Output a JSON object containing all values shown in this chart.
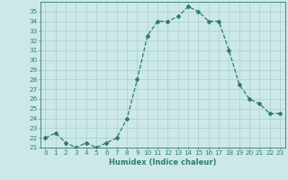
{
  "title": "",
  "xlabel": "Humidex (Indice chaleur)",
  "ylabel": "",
  "x": [
    0,
    1,
    2,
    3,
    4,
    5,
    6,
    7,
    8,
    9,
    10,
    11,
    12,
    13,
    14,
    15,
    16,
    17,
    18,
    19,
    20,
    21,
    22,
    23
  ],
  "y": [
    22.0,
    22.5,
    21.5,
    21.0,
    21.5,
    21.0,
    21.5,
    22.0,
    24.0,
    28.0,
    32.5,
    34.0,
    34.0,
    34.5,
    35.5,
    35.0,
    34.0,
    34.0,
    31.0,
    27.5,
    26.0,
    25.5,
    24.5,
    24.5
  ],
  "line_color": "#2e7d6e",
  "bg_color": "#cce8e8",
  "grid_color": "#aacfcf",
  "ylim": [
    21,
    36
  ],
  "yticks": [
    21,
    22,
    23,
    24,
    25,
    26,
    27,
    28,
    29,
    30,
    31,
    32,
    33,
    34,
    35
  ],
  "xticks": [
    0,
    1,
    2,
    3,
    4,
    5,
    6,
    7,
    8,
    9,
    10,
    11,
    12,
    13,
    14,
    15,
    16,
    17,
    18,
    19,
    20,
    21,
    22,
    23
  ],
  "marker": "D",
  "markersize": 2.0,
  "linewidth": 0.9,
  "xlabel_fontsize": 6.0,
  "tick_fontsize": 5.2
}
